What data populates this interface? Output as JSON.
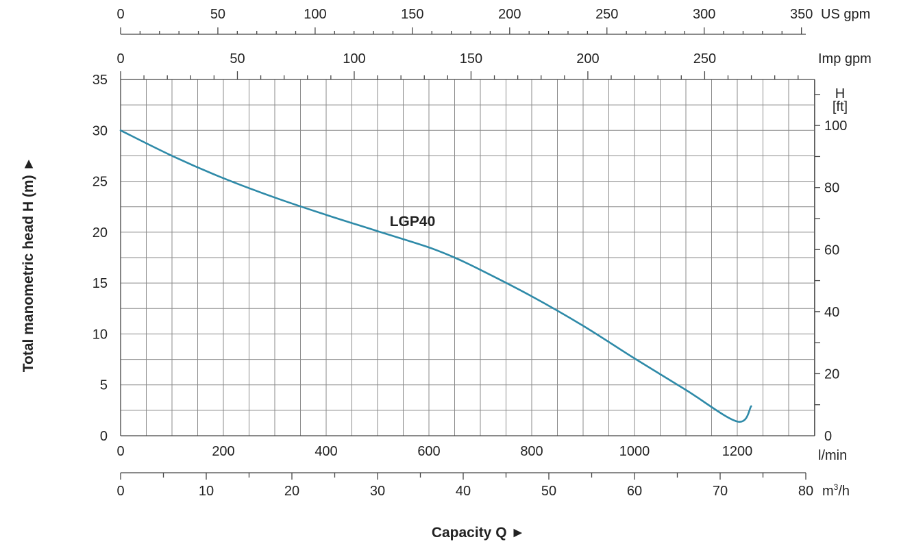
{
  "chart_data": {
    "type": "line",
    "series": [
      {
        "name": "LGP40",
        "x": [
          0,
          100,
          200,
          300,
          400,
          500,
          600,
          650,
          700,
          800,
          900,
          1000,
          1100,
          1200,
          1227
        ],
        "y": [
          30,
          27.5,
          25.3,
          23.4,
          21.7,
          20.1,
          18.5,
          17.5,
          16.3,
          13.7,
          10.8,
          7.6,
          4.5,
          1.4,
          2.9
        ]
      }
    ],
    "xlabel": "Capacity Q ►",
    "ylabel": "Total manometric head H (m) ►",
    "x_unit_main": "l/min",
    "xlim": [
      0,
      1350
    ],
    "ylim": [
      0,
      35
    ],
    "x_ticks": [
      "0",
      "200",
      "400",
      "600",
      "800",
      "1000",
      "1200"
    ],
    "y_ticks": [
      "0",
      "5",
      "10",
      "15",
      "20",
      "25",
      "30",
      "35"
    ],
    "axis_us_gpm": {
      "unit": "US gpm",
      "ticks": [
        "0",
        "50",
        "100",
        "150",
        "200",
        "250",
        "300",
        "350"
      ]
    },
    "axis_imp_gpm": {
      "unit": "Imp gpm",
      "ticks": [
        "0",
        "50",
        "100",
        "150",
        "200",
        "250"
      ]
    },
    "axis_m3h": {
      "unit_base": "m",
      "unit_sup": "3",
      "unit_tail": "/h",
      "ticks": [
        "0",
        "10",
        "20",
        "30",
        "40",
        "50",
        "60",
        "70",
        "80"
      ]
    },
    "axis_ft": {
      "title_top": "H",
      "title_bottom": "[ft]",
      "ticks": [
        "0",
        "20",
        "40",
        "60",
        "80",
        "100"
      ]
    },
    "series_label": "LGP40",
    "curve_color": "#2e8aa8",
    "grid": true
  }
}
